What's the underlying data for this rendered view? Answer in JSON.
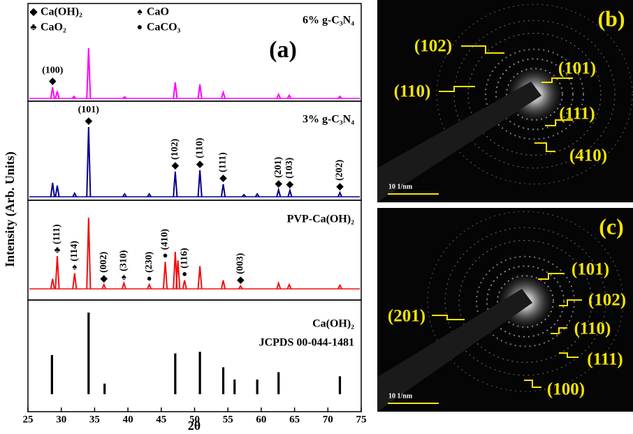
{
  "chart_data": {
    "type": "xrd",
    "title": "(a)",
    "x_label": "2θ",
    "y_label": "Intensity (Arb. Units)",
    "xlim": [
      25,
      75
    ],
    "xticks": [
      25,
      30,
      35,
      40,
      45,
      50,
      55,
      60,
      65,
      70,
      75
    ],
    "legend": [
      {
        "symbol": "◆",
        "name": "Ca(OH)₂"
      },
      {
        "symbol": "♠",
        "name": "CaO"
      },
      {
        "symbol": "♣",
        "name": "CaO₂"
      },
      {
        "symbol": "●",
        "name": "CaCO₃"
      }
    ],
    "series": [
      {
        "name": "6% g-C₃N₄",
        "color": "#ff00ff",
        "style": "line",
        "x": [
          28.7,
          29.4,
          31.9,
          34.1,
          39.5,
          47.1,
          50.8,
          54.3,
          62.6,
          64.2,
          71.8
        ],
        "values": [
          22,
          14,
          4,
          100,
          3,
          32,
          28,
          12,
          8,
          6,
          4
        ],
        "annotations": [
          {
            "text": "(100)",
            "symbol": "◆",
            "x": 28.7,
            "orientation": "horizontal"
          }
        ]
      },
      {
        "name": "3% g-C₃N₄",
        "color": "#00008b",
        "style": "line",
        "x": [
          28.7,
          29.4,
          32.0,
          34.1,
          39.5,
          43.2,
          47.1,
          50.8,
          54.3,
          57.4,
          59.4,
          62.6,
          64.3,
          71.8
        ],
        "values": [
          20,
          16,
          5,
          100,
          4,
          4,
          36,
          38,
          18,
          3,
          4,
          10,
          9,
          6
        ],
        "annotations": [
          {
            "text": "(101)",
            "symbol": "◆",
            "x": 34.1,
            "orientation": "horizontal"
          },
          {
            "text": "(102)",
            "symbol": "◆",
            "x": 47.1,
            "orientation": "vertical"
          },
          {
            "text": "(110)",
            "symbol": "◆",
            "x": 50.8,
            "orientation": "vertical"
          },
          {
            "text": "(111)",
            "symbol": "◆",
            "x": 54.3,
            "orientation": "vertical"
          },
          {
            "text": "(201)",
            "symbol": "◆",
            "x": 62.6,
            "orientation": "vertical"
          },
          {
            "text": "(103)",
            "symbol": "◆",
            "x": 64.3,
            "orientation": "vertical"
          },
          {
            "text": "(202)",
            "symbol": "◆",
            "x": 71.8,
            "orientation": "vertical"
          }
        ]
      },
      {
        "name": "PVP-Ca(OH)₂",
        "color": "#ee1111",
        "style": "line",
        "x": [
          28.7,
          29.4,
          32.0,
          34.1,
          36.4,
          39.4,
          43.2,
          45.6,
          47.1,
          47.5,
          48.5,
          50.8,
          54.3,
          56.9,
          62.6,
          64.2,
          71.8
        ],
        "values": [
          14,
          46,
          22,
          100,
          6,
          8,
          6,
          38,
          52,
          40,
          12,
          32,
          12,
          4,
          8,
          6,
          5
        ],
        "annotations": [
          {
            "text": "(111)",
            "symbol": "♣",
            "x": 29.4,
            "orientation": "vertical"
          },
          {
            "text": "(114)",
            "symbol": "♠",
            "x": 32.0,
            "orientation": "vertical"
          },
          {
            "text": "(002)",
            "symbol": "◆",
            "x": 36.4,
            "orientation": "vertical"
          },
          {
            "text": "(310)",
            "symbol": "♠",
            "x": 39.4,
            "orientation": "vertical"
          },
          {
            "text": "(230)",
            "symbol": "●",
            "x": 43.2,
            "orientation": "vertical"
          },
          {
            "text": "(410)",
            "symbol": "●",
            "x": 45.6,
            "orientation": "vertical"
          },
          {
            "text": "(116)",
            "symbol": "●",
            "x": 48.5,
            "orientation": "vertical"
          },
          {
            "text": "(003)",
            "symbol": "◆",
            "x": 56.9,
            "orientation": "vertical"
          }
        ]
      },
      {
        "name": "Ca(OH)₂",
        "reference": "JCPDS 00-044-1481",
        "color": "#000000",
        "style": "stick",
        "x": [
          28.6,
          34.1,
          36.5,
          47.1,
          50.8,
          54.3,
          56.0,
          59.4,
          62.6,
          71.8
        ],
        "values": [
          48,
          100,
          13,
          50,
          52,
          33,
          18,
          18,
          27,
          22
        ],
        "annotations": []
      }
    ]
  },
  "saed_panels": [
    {
      "label": "(b)",
      "scale_bar": "10 1/nm",
      "rings": [
        "(102)",
        "(101)",
        "(110)",
        "(111)",
        "(410)"
      ]
    },
    {
      "label": "(c)",
      "scale_bar": "10 1/nm",
      "rings": [
        "(101)",
        "(201)",
        "(102)",
        "(110)",
        "(111)",
        "(100)"
      ]
    }
  ]
}
